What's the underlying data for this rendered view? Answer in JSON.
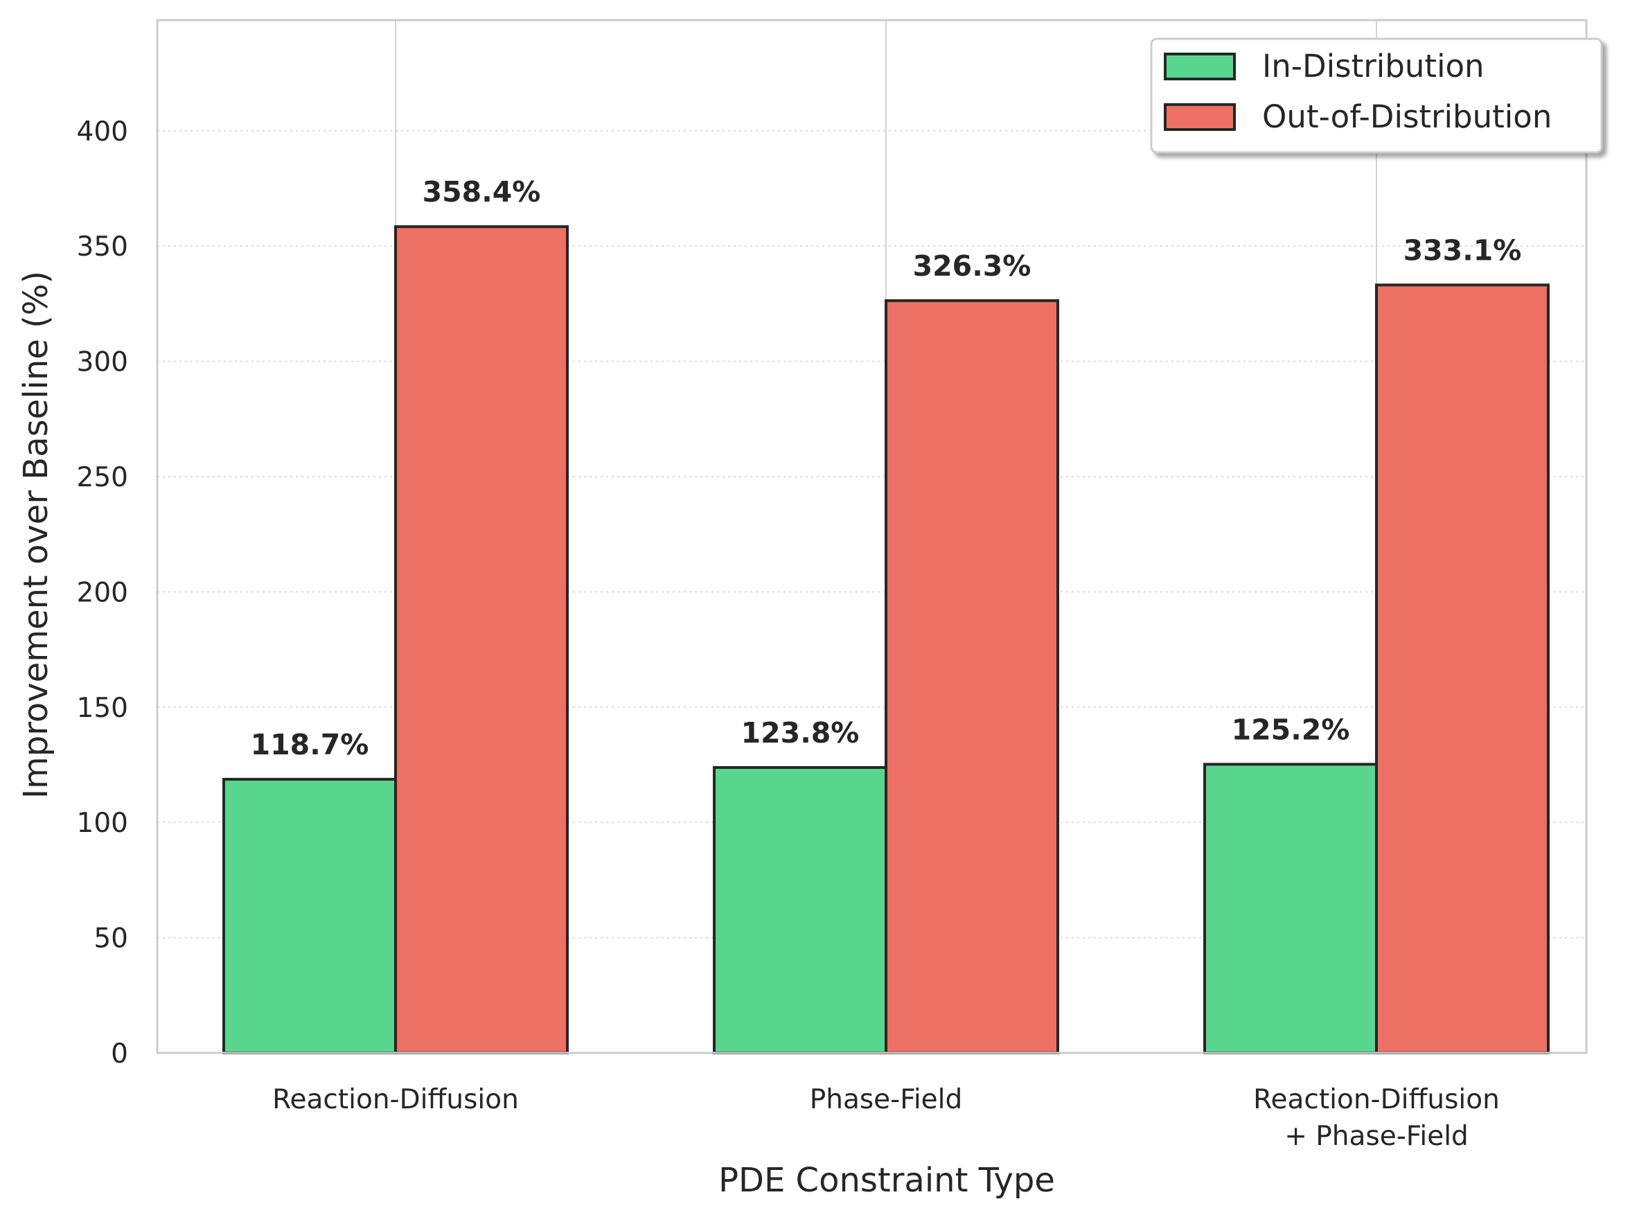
{
  "chart_data": {
    "type": "bar",
    "categories": [
      [
        "Reaction-Diffusion"
      ],
      [
        "Phase-Field"
      ],
      [
        "Reaction-Diffusion",
        "+ Phase-Field"
      ]
    ],
    "series": [
      {
        "name": "In-Distribution",
        "values": [
          118.7,
          123.8,
          125.2
        ],
        "labels": [
          "118.7%",
          "123.8%",
          "125.2%"
        ],
        "color": "#58d68d"
      },
      {
        "name": "Out-of-Distribution",
        "values": [
          358.4,
          326.3,
          333.1
        ],
        "labels": [
          "358.4%",
          "326.3%",
          "333.1%"
        ],
        "color": "#ec7063"
      }
    ],
    "title": "",
    "xlabel": "PDE Constraint Type",
    "ylabel": "Improvement over Baseline (%)",
    "ylim": [
      0,
      448
    ],
    "yticks": [
      0,
      50,
      100,
      150,
      200,
      250,
      300,
      350,
      400
    ],
    "grid": true,
    "legend_position": "top-right"
  }
}
